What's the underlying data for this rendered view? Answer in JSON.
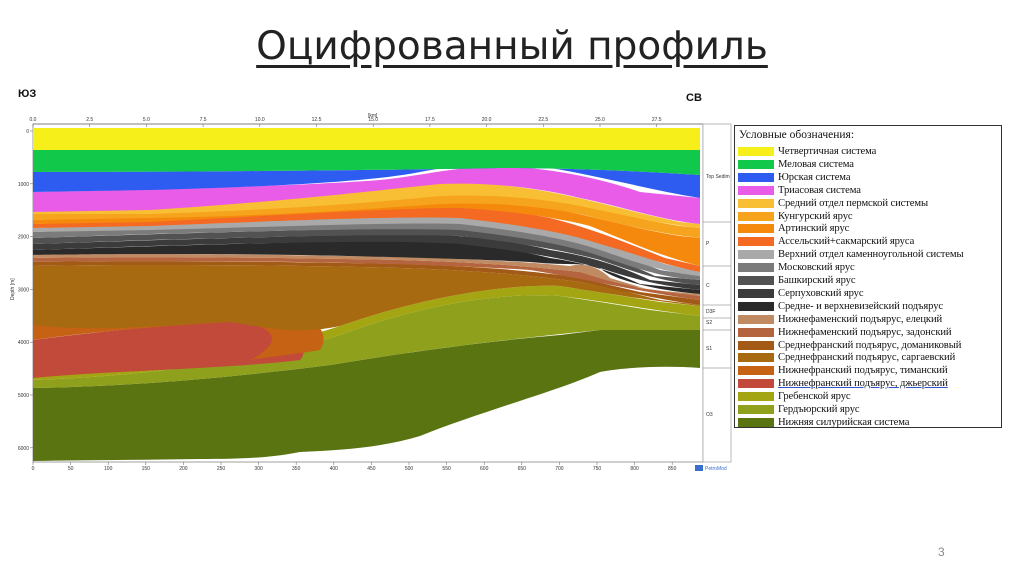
{
  "page": {
    "title": "Оцифрованный профиль",
    "dir_left": "ЮЗ",
    "dir_right": "СВ",
    "page_number": "3"
  },
  "profile": {
    "top_axis_unit": "[km]",
    "top_ticks": [
      "0.0",
      "2.5",
      "5.0",
      "7.5",
      "10.0",
      "12.5",
      "15.0",
      "17.5",
      "20.0",
      "22.5",
      "25.0",
      "27.5"
    ],
    "bottom_ticks": [
      "0",
      "50",
      "100",
      "150",
      "200",
      "250",
      "300",
      "350",
      "400",
      "450",
      "500",
      "550",
      "600",
      "650",
      "700",
      "750",
      "800",
      "850"
    ],
    "depth_ticks": [
      "0",
      "1000",
      "2000",
      "3000",
      "4000",
      "5000",
      "6000"
    ],
    "depth_label": "Depth [m]",
    "side_labels": [
      "Top Sedim",
      "P",
      "C",
      "D3F",
      "S2",
      "S1",
      "O3"
    ],
    "watermark": "PetroMod"
  },
  "legend": {
    "title": "Условные обозначения:",
    "items": [
      {
        "label": "Четвертичная система",
        "color": "#f7ef1a"
      },
      {
        "label": "Меловая система",
        "color": "#11c84a"
      },
      {
        "label": "Юрская система",
        "color": "#2f5cf0"
      },
      {
        "label": "Триасовая система",
        "color": "#e85ce8"
      },
      {
        "label": "Средний отдел пермской системы",
        "color": "#f9bf34"
      },
      {
        "label": "Кунгурский ярус",
        "color": "#f6a41d"
      },
      {
        "label": "Артинский ярус",
        "color": "#f5890d"
      },
      {
        "label": "Ассельский+сакмарский яруса",
        "color": "#f46a22"
      },
      {
        "label": "Верхний отдел каменноугольной системы",
        "color": "#a9a9a9"
      },
      {
        "label": "Московский ярус",
        "color": "#7b7b7b"
      },
      {
        "label": "Башкирский ярус",
        "color": "#525252"
      },
      {
        "label": "Серпуховский ярус",
        "color": "#3b3b3b"
      },
      {
        "label": "Средне- и верхневизейский подъярус",
        "color": "#2a2a2a"
      },
      {
        "label": "Нижнефаменский подъярус, елецкий",
        "color": "#c08a62"
      },
      {
        "label": "Нижнефаменский подъярус, задонский",
        "color": "#b4643e"
      },
      {
        "label": "Среднефранский подъярус, доманиковый",
        "color": "#a25a16"
      },
      {
        "label": "Среднефранский подъярус, саргаевский",
        "color": "#a86a10"
      },
      {
        "label": "Нижнефранский подъярус, тиманский",
        "color": "#c56214"
      },
      {
        "label": "Нижнефранский подъярус,  джьерский",
        "color": "#c24a3a"
      },
      {
        "label": "Гребенской ярус",
        "color": "#a3a612"
      },
      {
        "label": "Гердъюрский ярус",
        "color": "#8fa01c"
      },
      {
        "label": "Нижняя силурийская система",
        "color": "#5a7412"
      }
    ]
  }
}
